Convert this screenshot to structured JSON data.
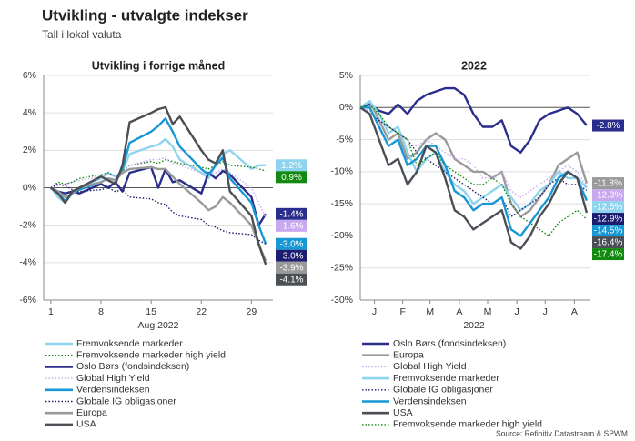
{
  "title": "Utvikling - utvalgte indekser",
  "subtitle": "Tall i lokal valuta",
  "source": "Source: Refinitiv Datastream & SPWM",
  "chart_data": [
    {
      "type": "line",
      "title": "Utvikling i forrige måned",
      "xlabel": "Aug 2022",
      "x": [
        1,
        2,
        3,
        4,
        5,
        8,
        9,
        10,
        11,
        12,
        15,
        16,
        17,
        18,
        19,
        22,
        23,
        24,
        25,
        26,
        29,
        30,
        31
      ],
      "xlim": [
        0,
        32
      ],
      "xticks": [
        1,
        8,
        15,
        22,
        29
      ],
      "ylim": [
        -6,
        6
      ],
      "yticks": [
        {
          "value": 6,
          "label": "6%"
        },
        {
          "value": 4,
          "label": "4%"
        },
        {
          "value": 2,
          "label": "2%"
        },
        {
          "value": 0,
          "label": "0%"
        },
        {
          "value": -2,
          "label": "-2%"
        },
        {
          "value": -4,
          "label": "-4%"
        },
        {
          "value": -6,
          "label": "-6%"
        }
      ],
      "grid": true,
      "series": [
        {
          "name": "Fremvoksende markeder",
          "color": "#8fd4ee",
          "style": "solid",
          "last_label": "1.2%",
          "values": [
            0,
            -0.5,
            -0.8,
            -0.3,
            0,
            0.5,
            0.8,
            0.6,
            0.9,
            1.8,
            2.2,
            2.3,
            2.6,
            2.2,
            1.5,
            0.8,
            0.5,
            1.2,
            1.8,
            2.0,
            1.0,
            1.2,
            1.2
          ]
        },
        {
          "name": "Fremvoksende markeder high yield",
          "color": "#12890f",
          "style": "dotted",
          "last_label": "0.9%",
          "values": [
            0,
            0.3,
            0.2,
            0.3,
            0.5,
            0.7,
            0.8,
            0.6,
            0.9,
            1.2,
            1.4,
            1.3,
            1.5,
            1.4,
            1.3,
            1.1,
            1.0,
            1.2,
            1.4,
            1.2,
            1.1,
            1.0,
            0.9
          ]
        },
        {
          "name": "Oslo Børs (fondsindeksen)",
          "color": "#2b2d8c",
          "style": "solid",
          "last_label": "-1.4%",
          "values": [
            0,
            -0.2,
            -0.3,
            -0.2,
            -0.3,
            0.2,
            0,
            0.3,
            -0.2,
            0.8,
            1.1,
            0,
            1.0,
            0.3,
            0.4,
            -0.3,
            0.8,
            0.5,
            0.9,
            0.7,
            -0.5,
            -2.0,
            -1.4
          ]
        },
        {
          "name": "Global High Yield",
          "color": "#c8a8ef",
          "style": "dotted",
          "last_label": "-1.6%",
          "values": [
            0,
            0.1,
            0.2,
            0.3,
            0.4,
            0.6,
            0.7,
            0.6,
            0.8,
            1.2,
            1.5,
            1.5,
            1.6,
            1.3,
            1.2,
            0.8,
            0.7,
            0.8,
            1.0,
            0.8,
            0,
            -0.8,
            -1.6
          ]
        },
        {
          "name": "Verdensindeksen",
          "color": "#1797d4",
          "style": "solid",
          "last_label": "-3.0%",
          "values": [
            0,
            -0.3,
            -0.7,
            -0.3,
            -0.1,
            0.3,
            0.5,
            0.4,
            1.0,
            2.4,
            3.0,
            3.3,
            3.7,
            3.0,
            2.2,
            1.0,
            0.7,
            1.2,
            1.6,
            0.5,
            -0.8,
            -2.0,
            -3.0
          ]
        },
        {
          "name": "Globale IG obligasjoner",
          "color": "#1c1c70",
          "style": "dotted",
          "last_label": "-3.0%",
          "values": [
            0,
            0.2,
            0.1,
            -0.1,
            -0.2,
            -0.1,
            0,
            -0.2,
            -0.1,
            -0.5,
            -0.6,
            -0.8,
            -0.9,
            -1.3,
            -1.5,
            -1.7,
            -2.0,
            -2.1,
            -2.3,
            -2.4,
            -2.5,
            -2.8,
            -3.0
          ]
        },
        {
          "name": "Europa",
          "color": "#9a9a9a",
          "style": "solid",
          "last_label": "-3.9%",
          "values": [
            0,
            -0.2,
            -0.5,
            -0.3,
            0,
            0.3,
            0.5,
            0.4,
            0.8,
            1.0,
            1.1,
            1.0,
            1.0,
            0.6,
            0.2,
            -0.8,
            -1.2,
            -1.0,
            -0.5,
            -0.8,
            -2.0,
            -3.0,
            -3.9
          ]
        },
        {
          "name": "USA",
          "color": "#4b4f55",
          "style": "solid",
          "last_label": "-4.1%",
          "values": [
            0,
            -0.3,
            -0.8,
            -0.2,
            0,
            0.6,
            0.4,
            0.2,
            1.2,
            3.5,
            4.0,
            4.2,
            4.3,
            3.4,
            3.8,
            2.0,
            1.5,
            1.3,
            2.0,
            -0.2,
            -1.5,
            -3.0,
            -4.1
          ]
        }
      ]
    },
    {
      "type": "line",
      "title": "2022",
      "xlabel": "2022",
      "x": [
        0,
        10,
        20,
        30,
        40,
        50,
        60,
        70,
        80,
        90,
        100,
        110,
        120,
        130,
        140,
        150,
        160,
        170,
        180,
        190,
        200,
        210,
        220,
        230,
        240
      ],
      "xlim": [
        0,
        243
      ],
      "xticks": [
        {
          "value": 15,
          "label": "J"
        },
        {
          "value": 45,
          "label": "F"
        },
        {
          "value": 74,
          "label": "M"
        },
        {
          "value": 105,
          "label": "A"
        },
        {
          "value": 135,
          "label": "M"
        },
        {
          "value": 166,
          "label": "J"
        },
        {
          "value": 196,
          "label": "J"
        },
        {
          "value": 227,
          "label": "A"
        }
      ],
      "ylim": [
        -30,
        5
      ],
      "yticks": [
        {
          "value": 5,
          "label": "5%"
        },
        {
          "value": 0,
          "label": "0%"
        },
        {
          "value": -5,
          "label": "-5%"
        },
        {
          "value": -10,
          "label": "-10%"
        },
        {
          "value": -15,
          "label": "-15%"
        },
        {
          "value": -20,
          "label": "-20%"
        },
        {
          "value": -25,
          "label": "-25%"
        },
        {
          "value": -30,
          "label": "-30%"
        }
      ],
      "grid": true,
      "series": [
        {
          "name": "Oslo Børs (fondsindeksen)",
          "color": "#2b2d8c",
          "style": "solid",
          "last_label": "-2.8%",
          "values": [
            0,
            0.5,
            -0.5,
            -1,
            0.5,
            -1,
            1,
            2,
            2.5,
            3,
            3,
            2,
            -1,
            -3,
            -3,
            -2,
            -6,
            -7,
            -5,
            -2,
            -1,
            -0.5,
            0,
            -1,
            -2.8
          ]
        },
        {
          "name": "Europa",
          "color": "#9a9a9a",
          "style": "solid",
          "last_label": "-11.8%",
          "values": [
            0,
            1,
            -2,
            -5,
            -4,
            -8,
            -7,
            -5,
            -4,
            -5,
            -8,
            -9,
            -10,
            -10,
            -11,
            -10,
            -15,
            -17,
            -16,
            -14,
            -12,
            -9,
            -8,
            -7,
            -11.8
          ]
        },
        {
          "name": "Global High Yield",
          "color": "#c8a8ef",
          "style": "dotted",
          "last_label": "-12.3%",
          "values": [
            0,
            -0.5,
            -2,
            -3,
            -4,
            -6,
            -6,
            -5,
            -6,
            -7,
            -8,
            -8,
            -9,
            -11,
            -11,
            -10,
            -13,
            -14,
            -13,
            -12,
            -11,
            -10,
            -9,
            -10,
            -12.3
          ]
        },
        {
          "name": "Fremvoksende markeder",
          "color": "#8fd4ee",
          "style": "solid",
          "last_label": "-12.5%",
          "values": [
            0,
            1,
            -1,
            -4,
            -3,
            -7,
            -10,
            -8,
            -7,
            -10,
            -12,
            -13,
            -15,
            -14,
            -13,
            -12,
            -14,
            -16,
            -15,
            -13,
            -12,
            -10,
            -11,
            -11,
            -12.5
          ]
        },
        {
          "name": "Globale IG obligasjoner",
          "color": "#1c1c70",
          "style": "dotted",
          "last_label": "-12.9%",
          "values": [
            0,
            -1,
            -2,
            -3,
            -4,
            -5,
            -7,
            -8,
            -9,
            -10,
            -11,
            -12,
            -13,
            -14,
            -15,
            -14,
            -17,
            -16,
            -15,
            -14,
            -12,
            -11,
            -12,
            -12,
            -12.9
          ]
        },
        {
          "name": "Verdensindeksen",
          "color": "#1797d4",
          "style": "solid",
          "last_label": "-14.5%",
          "values": [
            0,
            0,
            -3,
            -6,
            -5,
            -9,
            -8,
            -6,
            -6,
            -9,
            -13,
            -14,
            -16,
            -15,
            -15,
            -14,
            -19,
            -20,
            -18,
            -16,
            -14,
            -11,
            -10,
            -11,
            -14.5
          ]
        },
        {
          "name": "USA",
          "color": "#4b4f55",
          "style": "solid",
          "last_label": "-16.4%",
          "values": [
            0,
            -1,
            -5,
            -9,
            -8,
            -12,
            -10,
            -6,
            -7,
            -11,
            -16,
            -17,
            -19,
            -18,
            -17,
            -16,
            -21,
            -22,
            -20,
            -17,
            -15,
            -12,
            -10,
            -11,
            -16.4
          ]
        },
        {
          "name": "Fremvoksende markeder high yield",
          "color": "#12890f",
          "style": "dotted",
          "last_label": "-17.4%",
          "values": [
            0,
            0.5,
            -1,
            -3,
            -4,
            -5,
            -9,
            -8,
            -7,
            -9,
            -10,
            -11,
            -12,
            -12,
            -11,
            -12,
            -15,
            -17,
            -18,
            -19,
            -20,
            -18,
            -17,
            -16,
            -17.4
          ]
        }
      ]
    }
  ]
}
